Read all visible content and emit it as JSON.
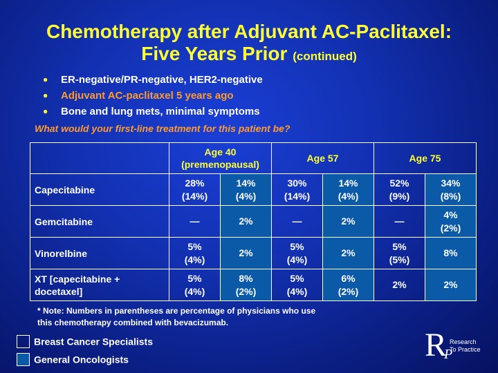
{
  "title": {
    "line1": "Chemotherapy after Adjuvant AC-Paclitaxel:",
    "line2": "Five Years Prior",
    "suffix": "(continued)"
  },
  "bullets": [
    {
      "text": "ER-negative/PR-negative, HER2-negative",
      "color": "#ffffff"
    },
    {
      "text": "Adjuvant AC-paclitaxel 5 years ago",
      "color": "#ff9a2e"
    },
    {
      "text": "Bone and lung mets, minimal symptoms",
      "color": "#ffffff"
    }
  ],
  "question": "What would your first-line treatment for this patient be?",
  "table": {
    "headers": [
      {
        "line1": "Age 40",
        "line2": "(premenopausal)"
      },
      {
        "line1": "Age 57",
        "line2": ""
      },
      {
        "line1": "Age 75",
        "line2": ""
      }
    ],
    "rows": [
      {
        "label": "Capecitabine",
        "cells": [
          [
            "28%",
            "(14%)"
          ],
          [
            "14%",
            "(4%)"
          ],
          [
            "30%",
            "(14%)"
          ],
          [
            "14%",
            "(4%)"
          ],
          [
            "52%",
            "(9%)"
          ],
          [
            "34%",
            "(8%)"
          ]
        ]
      },
      {
        "label": "Gemcitabine",
        "cells": [
          [
            "—",
            ""
          ],
          [
            "2%",
            ""
          ],
          [
            "—",
            ""
          ],
          [
            "2%",
            ""
          ],
          [
            "—",
            ""
          ],
          [
            "4%",
            "(2%)"
          ]
        ]
      },
      {
        "label": "Vinorelbine",
        "cells": [
          [
            "5%",
            "(4%)"
          ],
          [
            "2%",
            ""
          ],
          [
            "5%",
            "(4%)"
          ],
          [
            "2%",
            ""
          ],
          [
            "5%",
            "(5%)"
          ],
          [
            "8%",
            ""
          ]
        ]
      },
      {
        "label1": "XT [capecitabine +",
        "label2": "docetaxel]",
        "cells": [
          [
            "5%",
            "(4%)"
          ],
          [
            "8%",
            "(2%)"
          ],
          [
            "5%",
            "(4%)"
          ],
          [
            "6%",
            "(2%)"
          ],
          [
            "2%",
            ""
          ],
          [
            "2%",
            ""
          ]
        ]
      }
    ]
  },
  "note": {
    "line1": "* Note: Numbers in parentheses are percentage of physicians who use",
    "line2": "this chemotherapy combined with bevacizumab."
  },
  "legend": [
    {
      "label": "Breast Cancer Specialists",
      "color": "transparent"
    },
    {
      "label": "General Oncologists",
      "color": "#0a5aa8"
    }
  ],
  "logo": {
    "letter_r": "R",
    "letter_p": "P",
    "text1": "Research",
    "text2": "To Practice"
  },
  "colors": {
    "title": "#ffff33",
    "accent_orange": "#ff9a2e",
    "general_oncologists_fill": "#0a5aa8"
  }
}
